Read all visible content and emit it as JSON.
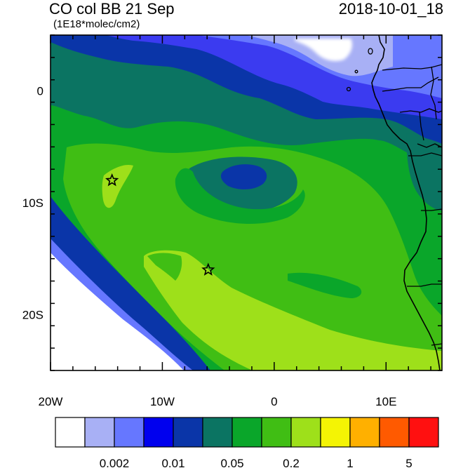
{
  "header": {
    "title": "CO col BB 21 Sep",
    "units": "(1E18*molec/cm2)",
    "datetime": "2018-10-01_18"
  },
  "axes": {
    "x_ticks": [
      "20W",
      "10W",
      "0",
      "10E"
    ],
    "y_ticks": [
      "0",
      "10S",
      "20S"
    ],
    "lon_range": [
      -20,
      15
    ],
    "lat_range": [
      -25,
      5
    ]
  },
  "markers": [
    {
      "name": "star-marker-1",
      "lon": -14.5,
      "lat": -8.0
    },
    {
      "name": "star-marker-2",
      "lon": -5.9,
      "lat": -16.0
    }
  ],
  "colorbar": {
    "colors": [
      "#ffffff",
      "#a8b0f5",
      "#6677ff",
      "#0000ee",
      "#0a35a8",
      "#0b7462",
      "#0aa62a",
      "#40be14",
      "#9ee01a",
      "#f4f404",
      "#ffb000",
      "#ff5a00",
      "#ff1010"
    ],
    "labels": [
      "0.002",
      "0.01",
      "0.05",
      "0.2",
      "1",
      "5"
    ]
  },
  "colors": {
    "ocean_white": "#ffffff",
    "land_border": "#000000"
  }
}
